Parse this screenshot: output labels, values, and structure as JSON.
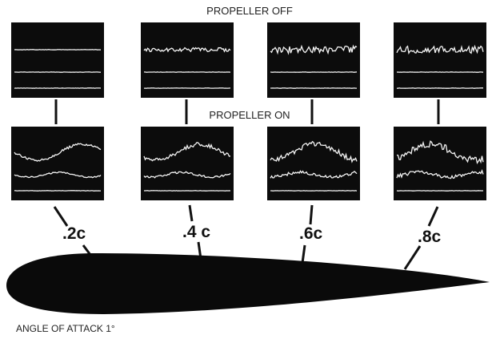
{
  "header": {
    "top_label": "PROPELLER OFF",
    "middle_label": "PROPELLER ON"
  },
  "stations": [
    {
      "label": ".2c"
    },
    {
      "label": ".4 c"
    },
    {
      "label": ".6c"
    },
    {
      "label": ".8c"
    }
  ],
  "caption": "ANGLE OF ATTACK 1°"
}
